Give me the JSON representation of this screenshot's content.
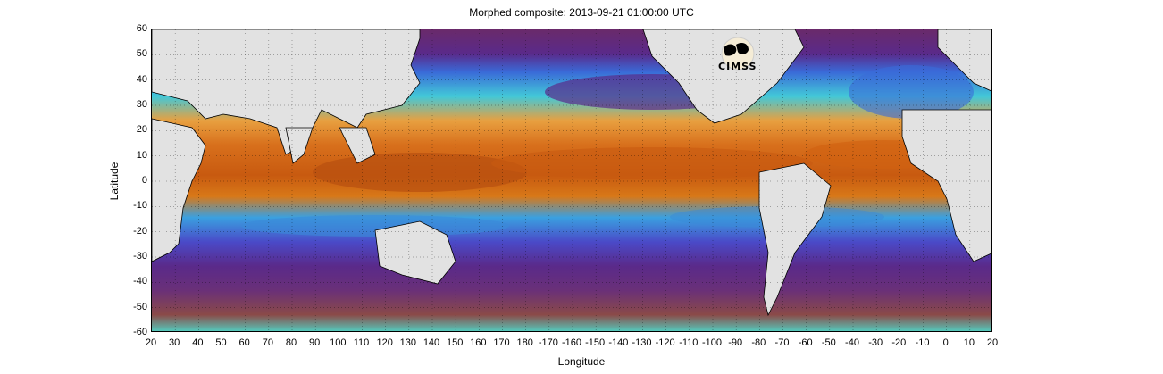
{
  "title": "Morphed composite: 2013-09-21 01:00:00 UTC",
  "xlabel": "Longitude",
  "ylabel": "Latitude",
  "logo_text": "CIMSS",
  "lat_ticks": [
    "60",
    "50",
    "40",
    "30",
    "20",
    "10",
    "0",
    "-10",
    "-20",
    "-30",
    "-40",
    "-50",
    "-60"
  ],
  "lon_ticks": [
    "20",
    "30",
    "40",
    "50",
    "60",
    "70",
    "80",
    "90",
    "100",
    "110",
    "120",
    "130",
    "140",
    "150",
    "160",
    "170",
    "180",
    "-170",
    "-160",
    "-150",
    "-140",
    "-130",
    "-120",
    "-110",
    "-100",
    "-90",
    "-80",
    "-70",
    "-60",
    "-50",
    "-40",
    "-30",
    "-20",
    "-10",
    "0",
    "10",
    "20"
  ],
  "colors": {
    "land": "#e2e2e2",
    "dry_ocean": "#5a2a7a",
    "low_mid": "#3a8ad8",
    "mid": "#4fd6c8",
    "mid_high": "#f0a040",
    "high": "#d86a10",
    "very_high": "#8a3a08",
    "polar": "#7a3a58"
  }
}
